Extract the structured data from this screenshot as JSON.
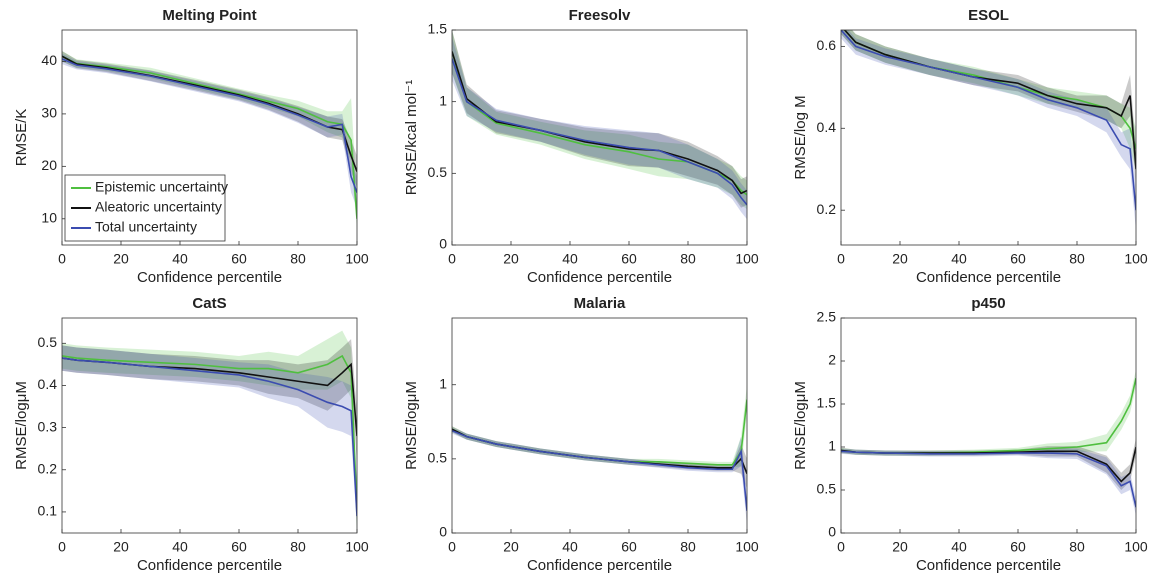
{
  "chart_data": [
    {
      "type": "line",
      "title": "Melting Point",
      "x_label": "Confidence percentile",
      "y_label": "RMSE/K",
      "x": [
        0,
        5,
        15,
        30,
        45,
        60,
        70,
        80,
        90,
        95,
        98,
        100
      ],
      "xlim": [
        0,
        100
      ],
      "xticks": [
        0,
        20,
        40,
        60,
        80,
        100
      ],
      "ylim": [
        5,
        46
      ],
      "yticks": [
        10,
        20,
        30,
        40
      ],
      "legend": "lower left",
      "series": [
        {
          "name": "Epistemic uncertainty",
          "color": "#4fbf3f",
          "values": [
            41,
            39.6,
            39,
            37.8,
            35.8,
            33.8,
            32.4,
            31,
            28.5,
            28,
            25,
            10
          ],
          "lower": [
            40,
            38.8,
            38.2,
            36.8,
            34.8,
            32.8,
            31.2,
            29.5,
            26.5,
            25.5,
            21,
            8
          ],
          "upper": [
            42,
            40.4,
            39.8,
            38.8,
            36.8,
            34.8,
            33.6,
            32.5,
            30.5,
            30.5,
            33,
            14
          ]
        },
        {
          "name": "Aleatoric uncertainty",
          "color": "#111111",
          "values": [
            41,
            39.5,
            38.8,
            37.3,
            35.5,
            33.6,
            32,
            30,
            27.5,
            27,
            22,
            19
          ],
          "lower": [
            40,
            38.7,
            38,
            36.3,
            34.5,
            32.6,
            30.8,
            28.5,
            25.5,
            25,
            19,
            16
          ],
          "upper": [
            42,
            40.3,
            39.6,
            38.3,
            36.5,
            34.6,
            33.2,
            31.5,
            29.5,
            29,
            25,
            22
          ]
        },
        {
          "name": "Total uncertainty",
          "color": "#3b4cb0",
          "values": [
            40.5,
            39.3,
            38.6,
            37.2,
            35.3,
            33.4,
            31.8,
            29.8,
            27.5,
            28,
            18,
            15
          ],
          "lower": [
            39.5,
            38.5,
            37.8,
            36.2,
            34.3,
            32.4,
            30.6,
            28.3,
            25.5,
            26,
            15,
            12
          ],
          "upper": [
            41.5,
            40.1,
            39.4,
            38.2,
            36.3,
            34.4,
            33,
            31.3,
            29.5,
            30,
            21,
            18
          ]
        }
      ]
    },
    {
      "type": "line",
      "title": "Freesolv",
      "x_label": "Confidence percentile",
      "y_label": "RMSE/kcal mol⁻¹",
      "x": [
        0,
        5,
        15,
        30,
        45,
        60,
        70,
        80,
        90,
        95,
        98,
        100
      ],
      "xlim": [
        0,
        100
      ],
      "xticks": [
        0,
        20,
        40,
        60,
        80,
        100
      ],
      "ylim": [
        0,
        1.5
      ],
      "yticks": [
        0,
        0.5,
        1,
        1.5
      ],
      "series": [
        {
          "color": "#4fbf3f",
          "values": [
            1.35,
            1.0,
            0.85,
            0.78,
            0.7,
            0.65,
            0.6,
            0.58,
            0.5,
            0.45,
            0.38,
            0.35
          ],
          "lower": [
            1.2,
            0.9,
            0.77,
            0.7,
            0.6,
            0.53,
            0.48,
            0.46,
            0.4,
            0.35,
            0.28,
            0.25
          ],
          "upper": [
            1.5,
            1.1,
            0.93,
            0.86,
            0.8,
            0.77,
            0.72,
            0.7,
            0.6,
            0.55,
            0.48,
            0.45
          ]
        },
        {
          "color": "#111111",
          "values": [
            1.35,
            1.02,
            0.86,
            0.8,
            0.72,
            0.67,
            0.66,
            0.6,
            0.52,
            0.45,
            0.36,
            0.38
          ],
          "lower": [
            1.2,
            0.92,
            0.78,
            0.72,
            0.62,
            0.55,
            0.54,
            0.48,
            0.42,
            0.35,
            0.26,
            0.28
          ],
          "upper": [
            1.5,
            1.12,
            0.94,
            0.88,
            0.82,
            0.79,
            0.78,
            0.72,
            0.62,
            0.55,
            0.46,
            0.48
          ]
        },
        {
          "color": "#3b4cb0",
          "values": [
            1.3,
            1.0,
            0.87,
            0.8,
            0.73,
            0.68,
            0.66,
            0.58,
            0.5,
            0.42,
            0.33,
            0.28
          ],
          "lower": [
            1.15,
            0.9,
            0.79,
            0.72,
            0.63,
            0.56,
            0.54,
            0.46,
            0.4,
            0.32,
            0.23,
            0.18
          ],
          "upper": [
            1.45,
            1.1,
            0.95,
            0.88,
            0.83,
            0.8,
            0.78,
            0.7,
            0.6,
            0.52,
            0.43,
            0.38
          ]
        }
      ]
    },
    {
      "type": "line",
      "title": "ESOL",
      "x_label": "Confidence percentile",
      "y_label": "RMSE/log M",
      "x": [
        0,
        5,
        15,
        30,
        45,
        60,
        70,
        80,
        90,
        95,
        98,
        100
      ],
      "xlim": [
        0,
        100
      ],
      "xticks": [
        0,
        20,
        40,
        60,
        80,
        100
      ],
      "ylim": [
        0.115,
        0.64
      ],
      "yticks": [
        0.2,
        0.4,
        0.6
      ],
      "series": [
        {
          "color": "#4fbf3f",
          "values": [
            0.65,
            0.61,
            0.58,
            0.55,
            0.53,
            0.5,
            0.48,
            0.47,
            0.45,
            0.43,
            0.4,
            0.35
          ],
          "lower": [
            0.63,
            0.59,
            0.56,
            0.53,
            0.51,
            0.48,
            0.46,
            0.45,
            0.42,
            0.4,
            0.35,
            0.3
          ],
          "upper": [
            0.67,
            0.63,
            0.6,
            0.57,
            0.55,
            0.52,
            0.5,
            0.49,
            0.48,
            0.46,
            0.45,
            0.4
          ]
        },
        {
          "color": "#111111",
          "values": [
            0.65,
            0.61,
            0.58,
            0.55,
            0.525,
            0.51,
            0.48,
            0.46,
            0.45,
            0.43,
            0.48,
            0.3
          ],
          "lower": [
            0.63,
            0.59,
            0.56,
            0.53,
            0.505,
            0.49,
            0.46,
            0.44,
            0.42,
            0.4,
            0.43,
            0.25
          ],
          "upper": [
            0.67,
            0.63,
            0.6,
            0.57,
            0.545,
            0.53,
            0.5,
            0.48,
            0.48,
            0.46,
            0.53,
            0.35
          ]
        },
        {
          "color": "#3b4cb0",
          "values": [
            0.64,
            0.6,
            0.575,
            0.55,
            0.525,
            0.5,
            0.47,
            0.45,
            0.42,
            0.36,
            0.35,
            0.2
          ],
          "lower": [
            0.62,
            0.58,
            0.555,
            0.53,
            0.505,
            0.48,
            0.45,
            0.43,
            0.39,
            0.33,
            0.3,
            0.15
          ],
          "upper": [
            0.66,
            0.62,
            0.595,
            0.57,
            0.545,
            0.52,
            0.49,
            0.47,
            0.45,
            0.39,
            0.4,
            0.25
          ]
        }
      ]
    },
    {
      "type": "line",
      "title": "CatS",
      "x_label": "Confidence percentile",
      "y_label": "RMSE/logμM",
      "x": [
        0,
        5,
        15,
        30,
        45,
        60,
        70,
        80,
        90,
        95,
        98,
        100
      ],
      "xlim": [
        0,
        100
      ],
      "xticks": [
        0,
        20,
        40,
        60,
        80,
        100
      ],
      "ylim": [
        0.05,
        0.56
      ],
      "yticks": [
        0.1,
        0.2,
        0.3,
        0.4,
        0.5
      ],
      "series": [
        {
          "color": "#4fbf3f",
          "values": [
            0.47,
            0.465,
            0.46,
            0.455,
            0.45,
            0.44,
            0.44,
            0.43,
            0.45,
            0.47,
            0.43,
            0.1
          ],
          "lower": [
            0.44,
            0.435,
            0.43,
            0.425,
            0.42,
            0.41,
            0.4,
            0.39,
            0.39,
            0.41,
            0.37,
            0.04
          ],
          "upper": [
            0.5,
            0.495,
            0.49,
            0.485,
            0.48,
            0.47,
            0.48,
            0.47,
            0.51,
            0.53,
            0.49,
            0.16
          ]
        },
        {
          "color": "#111111",
          "values": [
            0.465,
            0.46,
            0.455,
            0.445,
            0.44,
            0.43,
            0.42,
            0.41,
            0.4,
            0.43,
            0.45,
            0.28
          ],
          "lower": [
            0.435,
            0.43,
            0.425,
            0.415,
            0.41,
            0.4,
            0.38,
            0.37,
            0.34,
            0.37,
            0.39,
            0.22
          ],
          "upper": [
            0.495,
            0.49,
            0.485,
            0.475,
            0.47,
            0.46,
            0.46,
            0.45,
            0.46,
            0.49,
            0.51,
            0.34
          ]
        },
        {
          "color": "#3b4cb0",
          "values": [
            0.465,
            0.46,
            0.455,
            0.445,
            0.435,
            0.425,
            0.41,
            0.39,
            0.36,
            0.35,
            0.34,
            0.09
          ],
          "lower": [
            0.435,
            0.43,
            0.425,
            0.415,
            0.405,
            0.395,
            0.37,
            0.35,
            0.3,
            0.29,
            0.28,
            0.06
          ],
          "upper": [
            0.495,
            0.49,
            0.485,
            0.475,
            0.465,
            0.455,
            0.45,
            0.43,
            0.42,
            0.41,
            0.4,
            0.15
          ]
        }
      ]
    },
    {
      "type": "line",
      "title": "Malaria",
      "x_label": "Confidence percentile",
      "y_label": "RMSE/logμM",
      "x": [
        0,
        5,
        15,
        30,
        45,
        60,
        70,
        80,
        90,
        95,
        98,
        100
      ],
      "xlim": [
        0,
        100
      ],
      "xticks": [
        0,
        20,
        40,
        60,
        80,
        100
      ],
      "ylim": [
        0,
        1.45
      ],
      "yticks": [
        0,
        0.5,
        1
      ],
      "series": [
        {
          "color": "#4fbf3f",
          "values": [
            0.7,
            0.65,
            0.6,
            0.55,
            0.51,
            0.48,
            0.48,
            0.47,
            0.46,
            0.46,
            0.55,
            0.9
          ],
          "lower": [
            0.68,
            0.63,
            0.58,
            0.53,
            0.49,
            0.46,
            0.46,
            0.45,
            0.44,
            0.44,
            0.45,
            0.8
          ],
          "upper": [
            0.72,
            0.67,
            0.62,
            0.57,
            0.53,
            0.5,
            0.5,
            0.49,
            0.48,
            0.48,
            0.65,
            1.0
          ]
        },
        {
          "color": "#111111",
          "values": [
            0.7,
            0.65,
            0.6,
            0.55,
            0.51,
            0.48,
            0.465,
            0.45,
            0.44,
            0.44,
            0.5,
            0.4
          ],
          "lower": [
            0.68,
            0.63,
            0.58,
            0.53,
            0.49,
            0.46,
            0.445,
            0.43,
            0.42,
            0.42,
            0.4,
            0.3
          ],
          "upper": [
            0.72,
            0.67,
            0.62,
            0.57,
            0.53,
            0.5,
            0.485,
            0.47,
            0.46,
            0.46,
            0.6,
            0.5
          ]
        },
        {
          "color": "#3b4cb0",
          "values": [
            0.69,
            0.65,
            0.6,
            0.55,
            0.51,
            0.48,
            0.46,
            0.44,
            0.43,
            0.43,
            0.55,
            0.15
          ],
          "lower": [
            0.67,
            0.63,
            0.58,
            0.53,
            0.49,
            0.46,
            0.44,
            0.42,
            0.41,
            0.41,
            0.45,
            0.05
          ],
          "upper": [
            0.71,
            0.67,
            0.62,
            0.57,
            0.53,
            0.5,
            0.48,
            0.46,
            0.45,
            0.45,
            0.65,
            0.25
          ]
        }
      ]
    },
    {
      "type": "line",
      "title": "p450",
      "x_label": "Confidence percentile",
      "y_label": "RMSE/logμM",
      "x": [
        0,
        5,
        15,
        30,
        45,
        60,
        70,
        80,
        90,
        95,
        98,
        100
      ],
      "xlim": [
        0,
        100
      ],
      "xticks": [
        0,
        20,
        40,
        60,
        80,
        100
      ],
      "ylim": [
        0,
        2.5
      ],
      "yticks": [
        0,
        0.5,
        1,
        1.5,
        2,
        2.5
      ],
      "series": [
        {
          "color": "#4fbf3f",
          "values": [
            0.96,
            0.94,
            0.93,
            0.93,
            0.94,
            0.96,
            0.98,
            1.0,
            1.05,
            1.3,
            1.5,
            1.8
          ],
          "lower": [
            0.93,
            0.91,
            0.9,
            0.9,
            0.91,
            0.93,
            0.92,
            0.94,
            0.95,
            1.2,
            1.4,
            1.7
          ],
          "upper": [
            0.99,
            0.97,
            0.96,
            0.96,
            0.97,
            0.99,
            1.04,
            1.06,
            1.15,
            1.4,
            1.6,
            1.9
          ]
        },
        {
          "color": "#111111",
          "values": [
            0.96,
            0.94,
            0.93,
            0.93,
            0.93,
            0.94,
            0.95,
            0.95,
            0.8,
            0.6,
            0.7,
            1.0
          ],
          "lower": [
            0.93,
            0.91,
            0.9,
            0.9,
            0.9,
            0.91,
            0.89,
            0.89,
            0.7,
            0.5,
            0.6,
            0.9
          ],
          "upper": [
            0.99,
            0.97,
            0.96,
            0.96,
            0.96,
            0.97,
            1.01,
            1.01,
            0.9,
            0.7,
            0.8,
            1.1
          ]
        },
        {
          "color": "#3b4cb0",
          "values": [
            0.95,
            0.94,
            0.93,
            0.92,
            0.92,
            0.93,
            0.93,
            0.92,
            0.78,
            0.55,
            0.6,
            0.3
          ],
          "lower": [
            0.92,
            0.91,
            0.9,
            0.89,
            0.89,
            0.9,
            0.87,
            0.86,
            0.68,
            0.45,
            0.5,
            0.2
          ],
          "upper": [
            0.98,
            0.97,
            0.96,
            0.95,
            0.95,
            0.96,
            0.99,
            0.98,
            0.88,
            0.65,
            0.7,
            0.4
          ]
        }
      ]
    }
  ]
}
